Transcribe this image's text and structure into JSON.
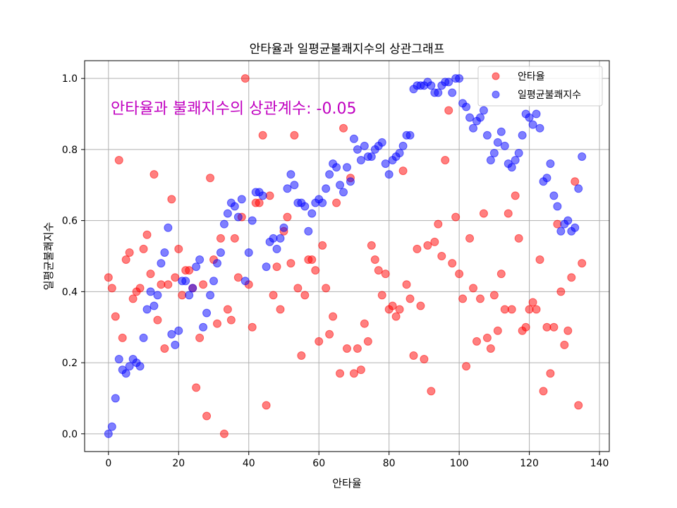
{
  "chart_data": {
    "type": "scatter",
    "title": "안타율과 일평균불쾌지수의 상관그래프",
    "xlabel": "안타율",
    "ylabel": "일평균불쾌지수",
    "xlim": [
      -6.8,
      142.8
    ],
    "ylim": [
      -0.05,
      1.05
    ],
    "xticks": [
      0,
      20,
      40,
      60,
      80,
      100,
      120,
      140
    ],
    "yticks": [
      0.0,
      0.2,
      0.4,
      0.6,
      0.8,
      1.0
    ],
    "xtick_labels": [
      "0",
      "20",
      "40",
      "60",
      "80",
      "100",
      "120",
      "140"
    ],
    "ytick_labels": [
      "0.0",
      "0.2",
      "0.4",
      "0.6",
      "0.8",
      "1.0"
    ],
    "grid": true,
    "legend_position": "top-right",
    "annotation": "안타율과 불쾌지수의 상관계수: -0.05",
    "series": [
      {
        "name": "안타율",
        "color": "#ff0000",
        "alpha": 0.5,
        "values": [
          0.44,
          0.41,
          0.33,
          0.77,
          0.27,
          0.49,
          0.51,
          0.38,
          0.4,
          0.41,
          0.52,
          0.56,
          0.45,
          0.73,
          0.32,
          0.42,
          0.24,
          0.42,
          0.66,
          0.44,
          0.52,
          0.39,
          0.46,
          0.46,
          0.41,
          0.13,
          0.27,
          0.42,
          0.05,
          0.72,
          0.49,
          0.31,
          0.55,
          0.0,
          0.35,
          0.32,
          0.55,
          0.44,
          0.61,
          1.0,
          0.42,
          0.3,
          0.65,
          0.65,
          0.84,
          0.08,
          0.67,
          0.39,
          0.47,
          0.35,
          0.57,
          0.61,
          0.48,
          0.84,
          0.41,
          0.22,
          0.39,
          0.49,
          0.49,
          0.46,
          0.26,
          0.53,
          0.41,
          0.28,
          0.33,
          0.65,
          0.17,
          0.86,
          0.24,
          0.72,
          0.17,
          0.24,
          0.18,
          0.31,
          0.26,
          0.53,
          0.49,
          0.46,
          0.39,
          0.45,
          0.35,
          0.36,
          0.33,
          0.35,
          0.74,
          0.42,
          0.38,
          0.22,
          0.52,
          0.36,
          0.21,
          0.53,
          0.12,
          0.54,
          0.59,
          0.5,
          0.77,
          0.91,
          0.48,
          0.61,
          0.45,
          0.38,
          0.19,
          0.55,
          0.41,
          0.26,
          0.38,
          0.62,
          0.27,
          0.24,
          0.39,
          0.29,
          0.45,
          0.35,
          0.62,
          0.35,
          0.67,
          0.55,
          0.29,
          0.3,
          0.35,
          0.37,
          0.35,
          0.49,
          0.12,
          0.3,
          0.17,
          0.3,
          0.59,
          0.4,
          0.25,
          0.29,
          0.44,
          0.71,
          0.08,
          0.48
        ]
      },
      {
        "name": "일평균불쾌지수",
        "color": "#0000ff",
        "alpha": 0.5,
        "values": [
          0.0,
          0.02,
          0.1,
          0.21,
          0.18,
          0.17,
          0.19,
          0.21,
          0.2,
          0.19,
          0.27,
          0.35,
          0.4,
          0.36,
          0.39,
          0.48,
          0.51,
          0.58,
          0.28,
          0.25,
          0.29,
          0.43,
          0.43,
          0.39,
          0.41,
          0.47,
          0.49,
          0.3,
          0.34,
          0.39,
          0.43,
          0.48,
          0.51,
          0.59,
          0.62,
          0.65,
          0.64,
          0.61,
          0.66,
          0.43,
          0.51,
          0.6,
          0.68,
          0.68,
          0.67,
          0.47,
          0.54,
          0.55,
          0.52,
          0.55,
          0.58,
          0.69,
          0.73,
          0.7,
          0.65,
          0.65,
          0.64,
          0.57,
          0.62,
          0.65,
          0.66,
          0.65,
          0.69,
          0.73,
          0.76,
          0.75,
          0.7,
          0.68,
          0.75,
          0.71,
          0.83,
          0.8,
          0.77,
          0.81,
          0.78,
          0.78,
          0.8,
          0.81,
          0.82,
          0.76,
          0.73,
          0.77,
          0.78,
          0.79,
          0.81,
          0.84,
          0.84,
          0.97,
          0.98,
          0.98,
          0.98,
          0.99,
          0.98,
          0.96,
          0.96,
          0.98,
          0.99,
          0.99,
          0.96,
          1.0,
          1.0,
          0.93,
          0.92,
          0.89,
          0.86,
          0.88,
          0.89,
          0.91,
          0.84,
          0.77,
          0.79,
          0.82,
          0.85,
          0.81,
          0.76,
          0.75,
          0.77,
          0.79,
          0.84,
          0.9,
          0.89,
          0.87,
          0.9,
          0.86,
          0.71,
          0.72,
          0.76,
          0.67,
          0.64,
          0.57,
          0.59,
          0.6,
          0.57,
          0.58,
          0.69,
          0.78
        ]
      }
    ]
  }
}
